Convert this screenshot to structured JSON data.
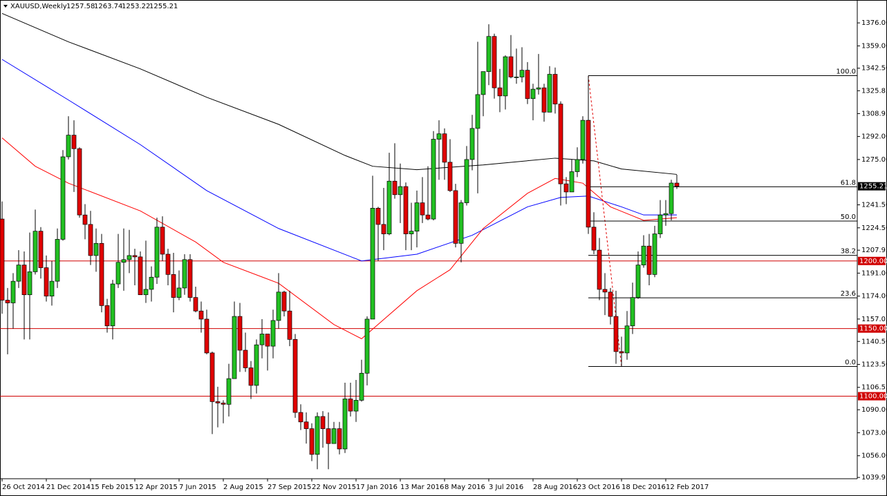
{
  "chart_data": {
    "type": "candlestick",
    "symbol": "XAUUSD,Weekly",
    "up_color": "#22c022",
    "down_color": "#e00000",
    "ylim": [
      1039.0,
      1391.9
    ],
    "yticks": [
      {
        "value": 1376,
        "label": "1376.00"
      },
      {
        "value": 1359,
        "label": "1359.00"
      },
      {
        "value": 1342.5,
        "label": "1342.50"
      },
      {
        "value": 1325.85,
        "label": "1325.85"
      },
      {
        "value": 1308.95,
        "label": "1308.95"
      },
      {
        "value": 1292,
        "label": "1292.00"
      },
      {
        "value": 1275,
        "label": "1275.00"
      },
      {
        "value": 1241.5,
        "label": "1241.50"
      },
      {
        "value": 1224.5,
        "label": "1224.50"
      },
      {
        "value": 1207.95,
        "label": "1207.95"
      },
      {
        "value": 1191,
        "label": "1191.00"
      },
      {
        "value": 1174,
        "label": "1174.00"
      },
      {
        "value": 1157.05,
        "label": "1157.05"
      },
      {
        "value": 1140.5,
        "label": "1140.50"
      },
      {
        "value": 1123.5,
        "label": "1123.50"
      },
      {
        "value": 1106.55,
        "label": "1106.55"
      },
      {
        "value": 1090,
        "label": "1090.00"
      },
      {
        "value": 1073,
        "label": "1073.00"
      },
      {
        "value": 1056,
        "label": "1056.00"
      },
      {
        "value": 1039.95,
        "label": "1039.95"
      }
    ],
    "categories": [
      "26 Oct 2014",
      null,
      null,
      null,
      null,
      null,
      null,
      null,
      "21 Dec 2014",
      null,
      null,
      null,
      null,
      null,
      null,
      null,
      "15 Feb 2015",
      null,
      null,
      null,
      null,
      null,
      null,
      null,
      "12 Apr 2015",
      null,
      null,
      null,
      null,
      null,
      null,
      null,
      "7 Jun 2015",
      null,
      null,
      null,
      null,
      null,
      null,
      null,
      "2 Aug 2015",
      null,
      null,
      null,
      null,
      null,
      null,
      null,
      "27 Sep 2015",
      null,
      null,
      null,
      null,
      null,
      null,
      null,
      "22 Nov 2015",
      null,
      null,
      null,
      null,
      null,
      null,
      null,
      "17 Jan 2016",
      null,
      null,
      null,
      null,
      null,
      null,
      null,
      "13 Mar 2016",
      null,
      null,
      null,
      null,
      null,
      null,
      null,
      "8 May 2016",
      null,
      null,
      null,
      null,
      null,
      null,
      null,
      "3 Jul 2016",
      null,
      null,
      null,
      null,
      null,
      null,
      null,
      "28 Aug 2016",
      null,
      null,
      null,
      null,
      null,
      null,
      null,
      "23 Oct 2016",
      null,
      null,
      null,
      null,
      null,
      null,
      null,
      "18 Dec 2016",
      null,
      null,
      null,
      null,
      null,
      null,
      null,
      "12 Feb 2017",
      null,
      null
    ],
    "open": [
      1231,
      1171,
      1169,
      1185,
      1197,
      1175,
      1192,
      1222,
      1195,
      1174,
      1185,
      1216,
      1277,
      1293,
      1283,
      1234,
      1227,
      1204,
      1213,
      1167,
      1152,
      1183,
      1199,
      1201,
      1204,
      1203,
      1175,
      1179,
      1188,
      1225,
      1205,
      1190,
      1173,
      1180,
      1201,
      1173,
      1163,
      1157,
      1132,
      1096,
      1095,
      1094,
      1113,
      1159,
      1134,
      1121,
      1108,
      1138,
      1146,
      1137,
      1156,
      1177,
      1163,
      1142,
      1088,
      1081,
      1076,
      1057,
      1085,
      1076,
      1065,
      1076,
      1061,
      1098,
      1089,
      1097,
      1117,
      1157,
      1239,
      1227,
      1220,
      1259,
      1249,
      1255,
      1220,
      1222,
      1243,
      1234,
      1231,
      1290,
      1294,
      1273,
      1252,
      1213,
      1243,
      1275,
      1298,
      1323,
      1340,
      1366,
      1328,
      1322,
      1351,
      1336,
      1336,
      1341,
      1320,
      1327,
      1328,
      1310,
      1338,
      1316,
      1257,
      1251,
      1266,
      1275,
      1304,
      1225,
      1208,
      1179,
      1177,
      1159,
      1133,
      1132,
      1152,
      1173,
      1197,
      1211,
      1190,
      1220,
      1234,
      1235,
      1257.58
    ],
    "high": [
      1244,
      1180,
      1191,
      1208,
      1207,
      1221,
      1238,
      1225,
      1204,
      1200,
      1224,
      1282,
      1307,
      1304,
      1284,
      1242,
      1237,
      1224,
      1220,
      1172,
      1186,
      1220,
      1224,
      1223,
      1209,
      1207,
      1215,
      1196,
      1232,
      1233,
      1209,
      1206,
      1193,
      1205,
      1205,
      1181,
      1170,
      1164,
      1133,
      1107,
      1097,
      1124,
      1170,
      1169,
      1147,
      1126,
      1142,
      1157,
      1146,
      1164,
      1191,
      1178,
      1178,
      1146,
      1094,
      1088,
      1080,
      1088,
      1089,
      1088,
      1081,
      1081,
      1110,
      1110,
      1112,
      1127,
      1159,
      1263,
      1240,
      1254,
      1280,
      1287,
      1272,
      1258,
      1243,
      1252,
      1262,
      1270,
      1296,
      1304,
      1298,
      1290,
      1257,
      1245,
      1285,
      1308,
      1362,
      1340,
      1375,
      1368,
      1342,
      1352,
      1367,
      1357,
      1358,
      1347,
      1331,
      1353,
      1331,
      1344,
      1343,
      1318,
      1262,
      1275,
      1284,
      1307,
      1337,
      1236,
      1217,
      1191,
      1180,
      1178,
      1144,
      1163,
      1184,
      1207,
      1219,
      1220,
      1226,
      1245,
      1245,
      1260,
      1263.74
    ],
    "low": [
      1161,
      1131,
      1150,
      1180,
      1142,
      1142,
      1190,
      1187,
      1170,
      1167,
      1180,
      1215,
      1275,
      1251,
      1232,
      1216,
      1197,
      1192,
      1162,
      1147,
      1142,
      1180,
      1178,
      1191,
      1182,
      1175,
      1169,
      1170,
      1183,
      1200,
      1182,
      1162,
      1171,
      1175,
      1170,
      1162,
      1147,
      1131,
      1072,
      1077,
      1080,
      1085,
      1113,
      1118,
      1118,
      1098,
      1102,
      1128,
      1119,
      1128,
      1150,
      1159,
      1137,
      1084,
      1075,
      1065,
      1052,
      1046,
      1062,
      1046,
      1065,
      1057,
      1058,
      1085,
      1081,
      1096,
      1108,
      1157,
      1200,
      1208,
      1219,
      1246,
      1228,
      1208,
      1208,
      1210,
      1228,
      1230,
      1230,
      1260,
      1260,
      1251,
      1210,
      1199,
      1241,
      1267,
      1250,
      1307,
      1330,
      1320,
      1310,
      1312,
      1335,
      1331,
      1332,
      1316,
      1304,
      1323,
      1303,
      1310,
      1309,
      1241,
      1242,
      1251,
      1262,
      1272,
      1220,
      1205,
      1171,
      1160,
      1153,
      1124,
      1122,
      1127,
      1146,
      1172,
      1195,
      1182,
      1188,
      1217,
      1226,
      1230,
      1253.22
    ],
    "close": [
      1171,
      1169,
      1185,
      1197,
      1175,
      1192,
      1222,
      1195,
      1174,
      1185,
      1216,
      1277,
      1293,
      1283,
      1234,
      1227,
      1204,
      1213,
      1167,
      1152,
      1183,
      1199,
      1201,
      1204,
      1203,
      1175,
      1179,
      1188,
      1225,
      1205,
      1190,
      1173,
      1180,
      1201,
      1173,
      1163,
      1157,
      1132,
      1096,
      1095,
      1094,
      1113,
      1159,
      1134,
      1121,
      1108,
      1138,
      1146,
      1137,
      1156,
      1177,
      1163,
      1142,
      1088,
      1081,
      1076,
      1057,
      1085,
      1076,
      1065,
      1076,
      1061,
      1098,
      1089,
      1097,
      1117,
      1157,
      1239,
      1227,
      1220,
      1259,
      1249,
      1255,
      1220,
      1222,
      1243,
      1234,
      1231,
      1290,
      1294,
      1273,
      1252,
      1213,
      1243,
      1275,
      1298,
      1323,
      1340,
      1366,
      1328,
      1322,
      1351,
      1336,
      1336,
      1341,
      1320,
      1327,
      1328,
      1310,
      1338,
      1316,
      1257,
      1251,
      1266,
      1275,
      1304,
      1225,
      1208,
      1179,
      1177,
      1159,
      1133,
      1132,
      1152,
      1173,
      1197,
      1211,
      1190,
      1220,
      1234,
      1235,
      1257.58,
      1255.21
    ],
    "moving_averages": [
      {
        "color": "#000000",
        "x": [
          0,
          12,
          25,
          37,
          50,
          62,
          67,
          75,
          87,
          100,
          107,
          112,
          122
        ],
        "values": [
          1383,
          1362,
          1342,
          1321,
          1301,
          1278,
          1270,
          1267.5,
          1271,
          1276,
          1274,
          1268,
          1264
        ]
      },
      {
        "color": "#0000ff",
        "x": [
          0,
          12,
          25,
          37,
          50,
          65,
          75,
          85,
          95,
          101,
          106,
          112,
          116,
          122
        ],
        "values": [
          1349,
          1319,
          1286,
          1252,
          1224,
          1200,
          1205,
          1219,
          1240,
          1247,
          1248,
          1240,
          1234,
          1234
        ]
      },
      {
        "color": "#ff0000",
        "x": [
          0,
          6,
          12,
          25,
          35,
          40,
          50,
          60,
          65,
          75,
          81,
          87,
          95,
          100,
          105,
          110,
          116,
          122
        ],
        "values": [
          1291,
          1270,
          1257.5,
          1237,
          1214,
          1199,
          1183.5,
          1153,
          1142.5,
          1178,
          1193.5,
          1224,
          1250,
          1261,
          1257.5,
          1240,
          1230,
          1232
        ]
      }
    ],
    "levels": [
      {
        "value": 1200,
        "label": "1200.00"
      },
      {
        "value": 1150,
        "label": "1150.00"
      },
      {
        "value": 1100,
        "label": "1100.00"
      }
    ],
    "level_color": "#d00000",
    "fibonacci": {
      "high": 1337,
      "low": 1122,
      "levels": [
        {
          "value": 100,
          "label": "100.0"
        },
        {
          "value": 61.8,
          "label": "61.8"
        },
        {
          "value": 50,
          "label": "50.0"
        },
        {
          "value": 38.2,
          "label": "38.2"
        },
        {
          "value": 23.6,
          "label": "23.6"
        },
        {
          "value": 0,
          "label": "0.0"
        }
      ]
    }
  }
}
